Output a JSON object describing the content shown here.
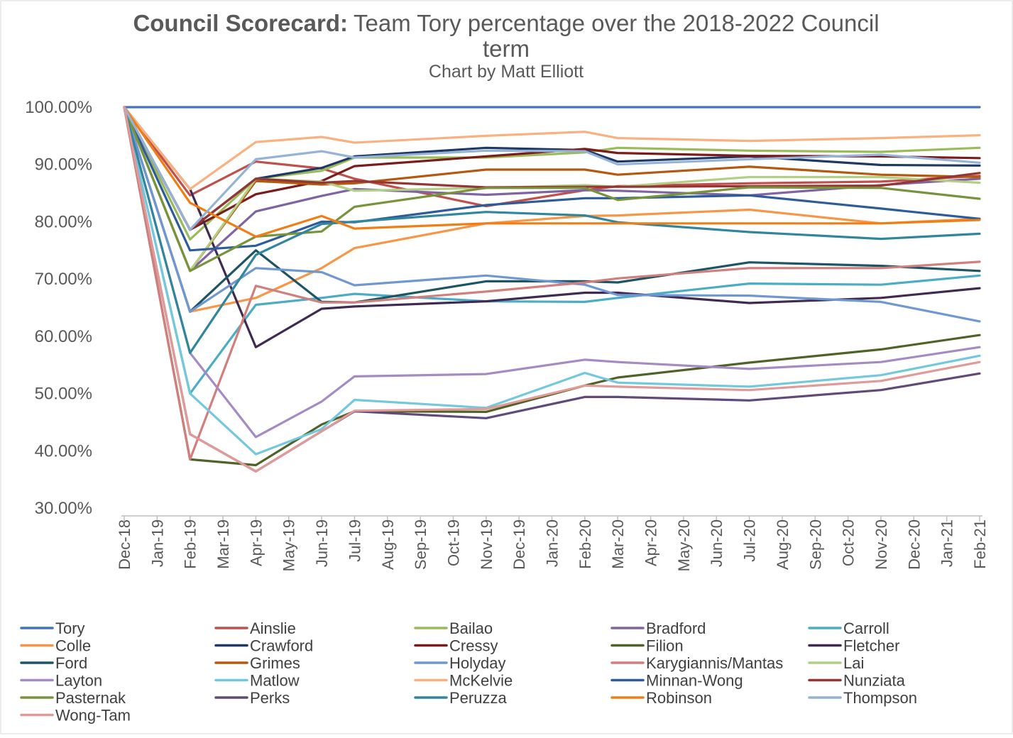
{
  "chart_data": {
    "type": "line",
    "title_bold": "Council Scorecard:",
    "title_rest": "Team Tory percentage over the 2018-2022 Council",
    "title_line2": "term",
    "subtitle": "Chart by Matt Elliott",
    "y_ticks": [
      "100.00%",
      "90.00%",
      "80.00%",
      "70.00%",
      "60.00%",
      "50.00%",
      "40.00%",
      "30.00%"
    ],
    "ylim": [
      30,
      100
    ],
    "x_categories": [
      "Dec-18",
      "Jan-19",
      "Feb-19",
      "Mar-19",
      "Apr-19",
      "May-19",
      "Jun-19",
      "Jul-19",
      "Aug-19",
      "Sep-19",
      "Oct-19",
      "Nov-19",
      "Dec-19",
      "Jan-20",
      "Feb-20",
      "Mar-20",
      "Apr-20",
      "May-20",
      "Jun-20",
      "Jul-20",
      "Aug-20",
      "Sep-20",
      "Oct-20",
      "Nov-20",
      "Dec-20",
      "Jan-21",
      "Feb-21"
    ],
    "grid": false,
    "legend_position": "bottom",
    "series": [
      {
        "name": "Tory",
        "color": "#4472C4",
        "points": [
          [
            0,
            100
          ],
          [
            26,
            100
          ]
        ]
      },
      {
        "name": "Ainslie",
        "color": "#C0504D",
        "points": [
          [
            0,
            100
          ],
          [
            2,
            84.6
          ],
          [
            4,
            90.5
          ],
          [
            6,
            89.3
          ],
          [
            7,
            87.5
          ],
          [
            11,
            82.7
          ],
          [
            14,
            85.5
          ],
          [
            15,
            86.2
          ],
          [
            19,
            86.7
          ],
          [
            23,
            87.0
          ],
          [
            26,
            88.0
          ]
        ]
      },
      {
        "name": "Bailao",
        "color": "#9BBB59",
        "points": [
          [
            0,
            100
          ],
          [
            2,
            76.9
          ],
          [
            4,
            87.5
          ],
          [
            6,
            88.9
          ],
          [
            7,
            91.2
          ],
          [
            11,
            91.2
          ],
          [
            14,
            92.1
          ],
          [
            15,
            92.9
          ],
          [
            19,
            92.4
          ],
          [
            23,
            92.2
          ],
          [
            26,
            92.9
          ]
        ]
      },
      {
        "name": "Bradford",
        "color": "#8064A2",
        "points": [
          [
            0,
            100
          ],
          [
            2,
            71.4
          ],
          [
            4,
            81.8
          ],
          [
            6,
            84.5
          ],
          [
            7,
            85.7
          ],
          [
            11,
            84.7
          ],
          [
            14,
            85.5
          ],
          [
            15,
            85.4
          ],
          [
            19,
            84.6
          ],
          [
            23,
            86.4
          ],
          [
            26,
            87.5
          ]
        ]
      },
      {
        "name": "Carroll",
        "color": "#4BACC6",
        "points": [
          [
            0,
            100
          ],
          [
            2,
            50.0
          ],
          [
            4,
            65.5
          ],
          [
            6,
            66.7
          ],
          [
            7,
            67.4
          ],
          [
            11,
            66.1
          ],
          [
            14,
            66.0
          ],
          [
            15,
            66.7
          ],
          [
            19,
            69.2
          ],
          [
            23,
            69.0
          ],
          [
            26,
            70.6
          ]
        ]
      },
      {
        "name": "Colle",
        "color": "#F79646",
        "points": [
          [
            0,
            100
          ],
          [
            2,
            64.3
          ],
          [
            4,
            66.7
          ],
          [
            6,
            71.9
          ],
          [
            7,
            75.4
          ],
          [
            11,
            79.7
          ],
          [
            14,
            81.0
          ],
          [
            15,
            81.1
          ],
          [
            19,
            82.1
          ],
          [
            23,
            79.7
          ],
          [
            26,
            80.5
          ]
        ]
      },
      {
        "name": "Crawford",
        "color": "#1F3864",
        "points": [
          [
            0,
            100
          ],
          [
            2,
            78.6
          ],
          [
            4,
            87.5
          ],
          [
            6,
            89.4
          ],
          [
            7,
            91.4
          ],
          [
            11,
            92.9
          ],
          [
            14,
            92.5
          ],
          [
            15,
            90.5
          ],
          [
            19,
            91.4
          ],
          [
            23,
            89.9
          ],
          [
            26,
            89.8
          ]
        ]
      },
      {
        "name": "Cressy",
        "color": "#7B1C1C",
        "points": [
          [
            0,
            100
          ],
          [
            2,
            78.6
          ],
          [
            4,
            84.8
          ],
          [
            6,
            87.1
          ],
          [
            7,
            89.7
          ],
          [
            11,
            91.4
          ],
          [
            14,
            92.7
          ],
          [
            15,
            92.0
          ],
          [
            19,
            91.5
          ],
          [
            23,
            91.4
          ],
          [
            26,
            91.1
          ]
        ]
      },
      {
        "name": "Filion",
        "color": "#4F6228",
        "points": [
          [
            0,
            100
          ],
          [
            2,
            38.5
          ],
          [
            4,
            37.5
          ],
          [
            6,
            44.6
          ],
          [
            7,
            46.9
          ],
          [
            11,
            46.8
          ],
          [
            14,
            51.4
          ],
          [
            15,
            52.8
          ],
          [
            19,
            55.4
          ],
          [
            23,
            57.7
          ],
          [
            26,
            60.2
          ]
        ]
      },
      {
        "name": "Fletcher",
        "color": "#3F2B52",
        "points": [
          [
            0,
            100
          ],
          [
            2,
            85.7
          ],
          [
            4,
            58.1
          ],
          [
            6,
            64.8
          ],
          [
            7,
            65.2
          ],
          [
            11,
            66.1
          ],
          [
            14,
            67.6
          ],
          [
            15,
            67.6
          ],
          [
            19,
            65.8
          ],
          [
            23,
            66.7
          ],
          [
            26,
            68.4
          ]
        ]
      },
      {
        "name": "Ford",
        "color": "#1D5565",
        "points": [
          [
            0,
            100
          ],
          [
            2,
            64.3
          ],
          [
            4,
            75.0
          ],
          [
            6,
            66.0
          ],
          [
            7,
            65.9
          ],
          [
            11,
            69.6
          ],
          [
            14,
            69.6
          ],
          [
            15,
            69.4
          ],
          [
            19,
            72.9
          ],
          [
            23,
            72.3
          ],
          [
            26,
            71.4
          ]
        ]
      },
      {
        "name": "Grimes",
        "color": "#B35A0E",
        "points": [
          [
            0,
            100
          ],
          [
            2,
            71.4
          ],
          [
            4,
            87.1
          ],
          [
            6,
            86.5
          ],
          [
            7,
            86.7
          ],
          [
            11,
            89.1
          ],
          [
            14,
            89.1
          ],
          [
            15,
            88.2
          ],
          [
            19,
            89.6
          ],
          [
            23,
            88.2
          ],
          [
            26,
            87.8
          ]
        ]
      },
      {
        "name": "Holyday",
        "color": "#6F98D2",
        "points": [
          [
            0,
            100
          ],
          [
            2,
            64.3
          ],
          [
            4,
            71.9
          ],
          [
            6,
            71.2
          ],
          [
            7,
            68.9
          ],
          [
            11,
            70.6
          ],
          [
            14,
            69.0
          ],
          [
            15,
            67.2
          ],
          [
            19,
            67.1
          ],
          [
            23,
            66.0
          ],
          [
            26,
            62.6
          ]
        ]
      },
      {
        "name": "Karygiannis/Mantas",
        "color": "#D07F7C",
        "points": [
          [
            0,
            100
          ],
          [
            2,
            38.5
          ],
          [
            4,
            68.8
          ],
          [
            6,
            65.9
          ],
          [
            7,
            65.9
          ],
          [
            11,
            67.8
          ],
          [
            14,
            69.4
          ],
          [
            15,
            70.1
          ],
          [
            19,
            71.9
          ],
          [
            23,
            71.9
          ],
          [
            26,
            73.0
          ]
        ]
      },
      {
        "name": "Lai",
        "color": "#B3CF85",
        "points": [
          [
            0,
            100
          ],
          [
            2,
            71.4
          ],
          [
            4,
            87.5
          ],
          [
            6,
            87.0
          ],
          [
            7,
            85.4
          ],
          [
            11,
            85.9
          ],
          [
            14,
            86.4
          ],
          [
            15,
            86.1
          ],
          [
            19,
            87.8
          ],
          [
            23,
            87.8
          ],
          [
            26,
            86.8
          ]
        ]
      },
      {
        "name": "Layton",
        "color": "#A58BC4",
        "points": [
          [
            0,
            100
          ],
          [
            2,
            57.1
          ],
          [
            4,
            42.4
          ],
          [
            6,
            48.6
          ],
          [
            7,
            53.0
          ],
          [
            11,
            53.4
          ],
          [
            14,
            55.9
          ],
          [
            15,
            55.5
          ],
          [
            19,
            54.3
          ],
          [
            23,
            55.5
          ],
          [
            26,
            58.1
          ]
        ]
      },
      {
        "name": "Matlow",
        "color": "#74C8DD",
        "points": [
          [
            0,
            100
          ],
          [
            2,
            50.0
          ],
          [
            4,
            39.4
          ],
          [
            6,
            43.8
          ],
          [
            7,
            48.9
          ],
          [
            11,
            47.5
          ],
          [
            14,
            53.6
          ],
          [
            15,
            51.9
          ],
          [
            19,
            51.2
          ],
          [
            23,
            53.2
          ],
          [
            26,
            56.6
          ]
        ]
      },
      {
        "name": "McKelvie",
        "color": "#FAB07F",
        "points": [
          [
            0,
            100
          ],
          [
            2,
            85.7
          ],
          [
            4,
            93.9
          ],
          [
            6,
            94.8
          ],
          [
            7,
            93.8
          ],
          [
            11,
            95.0
          ],
          [
            14,
            95.7
          ],
          [
            15,
            94.6
          ],
          [
            19,
            94.1
          ],
          [
            23,
            94.6
          ],
          [
            26,
            95.1
          ]
        ]
      },
      {
        "name": "Minnan-Wong",
        "color": "#2E5C9A",
        "points": [
          [
            0,
            100
          ],
          [
            2,
            75.0
          ],
          [
            4,
            75.8
          ],
          [
            6,
            80.0
          ],
          [
            7,
            79.9
          ],
          [
            11,
            82.9
          ],
          [
            14,
            84.1
          ],
          [
            15,
            84.1
          ],
          [
            19,
            84.6
          ],
          [
            23,
            82.3
          ],
          [
            26,
            80.5
          ]
        ]
      },
      {
        "name": "Nunziata",
        "color": "#943634",
        "points": [
          [
            0,
            100
          ],
          [
            2,
            78.6
          ],
          [
            4,
            87.5
          ],
          [
            6,
            86.8
          ],
          [
            7,
            87.1
          ],
          [
            11,
            86.0
          ],
          [
            14,
            86.1
          ],
          [
            15,
            86.1
          ],
          [
            19,
            86.2
          ],
          [
            23,
            86.3
          ],
          [
            26,
            88.5
          ]
        ]
      },
      {
        "name": "Pasternak",
        "color": "#77933C",
        "points": [
          [
            0,
            100
          ],
          [
            2,
            71.4
          ],
          [
            4,
            77.4
          ],
          [
            6,
            78.3
          ],
          [
            7,
            82.6
          ],
          [
            11,
            85.9
          ],
          [
            14,
            85.9
          ],
          [
            15,
            83.8
          ],
          [
            19,
            86.0
          ],
          [
            23,
            85.9
          ],
          [
            26,
            84.0
          ]
        ]
      },
      {
        "name": "Perks",
        "color": "#5F4A7A",
        "points": [
          [
            0,
            100
          ],
          [
            2,
            42.9
          ],
          [
            4,
            36.4
          ],
          [
            6,
            43.4
          ],
          [
            7,
            46.9
          ],
          [
            11,
            45.7
          ],
          [
            14,
            49.4
          ],
          [
            15,
            49.4
          ],
          [
            19,
            48.8
          ],
          [
            23,
            50.6
          ],
          [
            26,
            53.5
          ]
        ]
      },
      {
        "name": "Peruzza",
        "color": "#31859C",
        "points": [
          [
            0,
            100
          ],
          [
            2,
            57.1
          ],
          [
            4,
            74.2
          ],
          [
            6,
            79.6
          ],
          [
            7,
            80.0
          ],
          [
            11,
            81.7
          ],
          [
            14,
            81.1
          ],
          [
            15,
            79.9
          ],
          [
            19,
            78.2
          ],
          [
            23,
            77.0
          ],
          [
            26,
            77.9
          ]
        ]
      },
      {
        "name": "Robinson",
        "color": "#F07E16",
        "points": [
          [
            0,
            100
          ],
          [
            2,
            83.3
          ],
          [
            4,
            77.4
          ],
          [
            6,
            81.0
          ],
          [
            7,
            78.8
          ],
          [
            11,
            79.7
          ],
          [
            14,
            79.7
          ],
          [
            15,
            79.7
          ],
          [
            19,
            79.7
          ],
          [
            23,
            79.7
          ],
          [
            26,
            80.3
          ]
        ]
      },
      {
        "name": "Thompson",
        "color": "#95B3D7",
        "points": [
          [
            0,
            100
          ],
          [
            2,
            78.6
          ],
          [
            4,
            90.9
          ],
          [
            6,
            92.3
          ],
          [
            7,
            91.2
          ],
          [
            11,
            92.4
          ],
          [
            14,
            92.3
          ],
          [
            15,
            90.0
          ],
          [
            19,
            90.9
          ],
          [
            23,
            91.7
          ],
          [
            26,
            90.3
          ]
        ]
      },
      {
        "name": "Wong-Tam",
        "color": "#E09A98",
        "points": [
          [
            0,
            100
          ],
          [
            2,
            42.9
          ],
          [
            4,
            36.4
          ],
          [
            6,
            43.4
          ],
          [
            7,
            47.0
          ],
          [
            11,
            47.3
          ],
          [
            14,
            51.4
          ],
          [
            15,
            51.2
          ],
          [
            19,
            50.6
          ],
          [
            23,
            52.2
          ],
          [
            26,
            55.5
          ]
        ]
      }
    ]
  }
}
